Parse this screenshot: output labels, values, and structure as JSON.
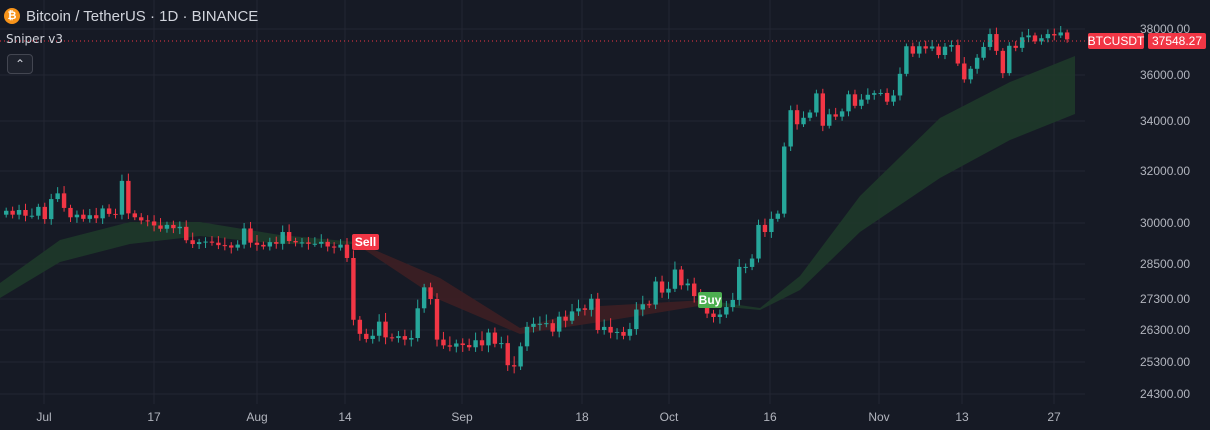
{
  "header": {
    "title": "Bitcoin / TetherUS · 1D · BINANCE",
    "coin_glyph": "₿"
  },
  "indicator": {
    "name": "Sniper v3",
    "collapse_glyph": "⌃"
  },
  "price_axis": {
    "symbol_tag": "BTCUSDT",
    "last_price": "37548.27"
  },
  "signals": {
    "sell": "Sell",
    "buy": "Buy"
  },
  "colors": {
    "background": "#161a25",
    "up": "#26a69a",
    "down": "#f23645",
    "band_up": "#1e3a2a",
    "band_down": "#3d1f24",
    "sell_tag": "#f23645",
    "buy_tag": "#4caf50"
  },
  "chart_data": {
    "type": "candlestick",
    "y_axis_labels": [
      38000,
      36000,
      34000,
      32000,
      30000,
      28500,
      27300,
      26300,
      25300,
      24300
    ],
    "x_axis_labels": [
      "Jul",
      "17",
      "Aug",
      "14",
      "Sep",
      "18",
      "Oct",
      "16",
      "Nov",
      "13",
      "27"
    ],
    "close_series": [
      30470,
      30320,
      30500,
      30280,
      30280,
      30620,
      30150,
      30920,
      31140,
      30580,
      30220,
      30320,
      30160,
      30300,
      30180,
      30560,
      30350,
      30320,
      31620,
      30370,
      30220,
      30100,
      30060,
      29910,
      29790,
      29930,
      29810,
      29860,
      29370,
      29230,
      29300,
      29320,
      29280,
      29190,
      29180,
      29100,
      29210,
      29800,
      29280,
      29200,
      29140,
      29300,
      29240,
      29670,
      29340,
      29290,
      29290,
      29240,
      29240,
      29310,
      29140,
      29100,
      29210,
      28720,
      26630,
      26180,
      26020,
      26120,
      26570,
      26070,
      26050,
      26110,
      26000,
      26050,
      27000,
      27700,
      27300,
      26000,
      25820,
      25780,
      25880,
      25830,
      25760,
      25980,
      25820,
      26220,
      25870,
      25890,
      25200,
      25160,
      25790,
      26400,
      26500,
      26500,
      26520,
      26250,
      26730,
      26600,
      26900,
      27000,
      26950,
      27310,
      26300,
      26400,
      26220,
      26240,
      26120,
      26330,
      26960,
      27130,
      27120,
      27900,
      27520,
      27650,
      28310,
      27770,
      27830,
      27400,
      27140,
      26830,
      26720,
      26800,
      27040,
      27270,
      28400,
      28400,
      28700,
      29930,
      29670,
      30160,
      30360,
      32980,
      34470,
      33870,
      34140,
      34370,
      35200,
      33810,
      34290,
      34190,
      34420,
      35160,
      34660,
      34930,
      35140,
      35210,
      35220,
      34840,
      35110,
      36050,
      37250,
      36930,
      37250,
      37150,
      37240,
      36870,
      37230,
      37300,
      36500,
      35810,
      36270,
      36750,
      37220,
      37780,
      37050,
      36080,
      37270,
      37180,
      37640,
      37720,
      37460,
      37600,
      37780,
      37720,
      37850,
      37548
    ]
  }
}
